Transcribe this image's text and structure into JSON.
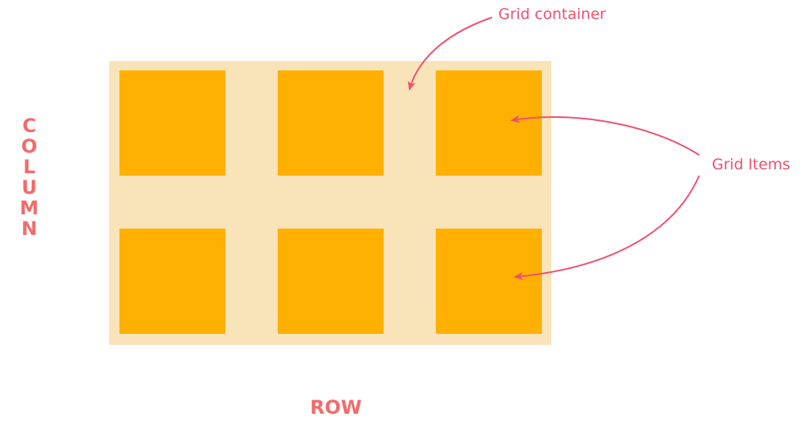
{
  "labels": {
    "column": "COLUMN",
    "row": "ROW",
    "grid_container": "Grid container",
    "grid_items": "Grid Items"
  },
  "colors": {
    "container_fill": "#f9e3b9",
    "item_fill": "#ffb000",
    "accent": "#f0506e",
    "axis_label": "#f26b6b"
  }
}
